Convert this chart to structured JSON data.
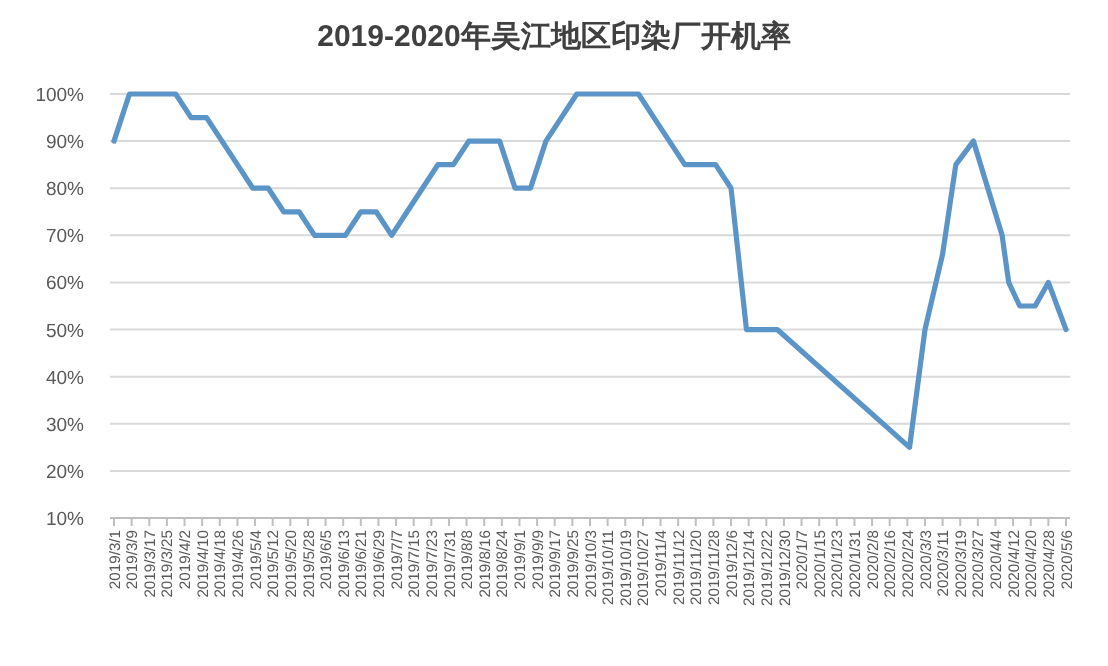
{
  "chart_data": {
    "type": "line",
    "title": "2019-2020年吴江地区印染厂开机率",
    "x": [
      "2019-03-01",
      "2019-03-08",
      "2019-03-15",
      "2019-03-22",
      "2019-03-29",
      "2019-04-05",
      "2019-04-12",
      "2019-04-19",
      "2019-04-26",
      "2019-05-03",
      "2019-05-10",
      "2019-05-17",
      "2019-05-24",
      "2019-05-31",
      "2019-06-07",
      "2019-06-14",
      "2019-06-21",
      "2019-06-28",
      "2019-07-05",
      "2019-07-12",
      "2019-07-19",
      "2019-07-26",
      "2019-08-02",
      "2019-08-09",
      "2019-08-16",
      "2019-08-23",
      "2019-08-30",
      "2019-09-06",
      "2019-09-13",
      "2019-09-20",
      "2019-09-27",
      "2019-10-04",
      "2019-10-11",
      "2019-10-18",
      "2019-10-25",
      "2019-11-01",
      "2019-11-08",
      "2019-11-15",
      "2019-11-22",
      "2019-11-29",
      "2019-12-06",
      "2019-12-13",
      "2019-12-20",
      "2019-12-27",
      "2020-02-25",
      "2020-03-03",
      "2020-03-11",
      "2020-03-17",
      "2020-03-25",
      "2020-04-07",
      "2020-04-10",
      "2020-04-15",
      "2020-04-22",
      "2020-04-28",
      "2020-05-06"
    ],
    "series": [
      {
        "color": "#5b95c8",
        "values": [
          90,
          100,
          100,
          100,
          100,
          95,
          95,
          90,
          85,
          80,
          80,
          75,
          75,
          70,
          70,
          70,
          75,
          75,
          70,
          75,
          80,
          85,
          85,
          90,
          90,
          90,
          80,
          80,
          90,
          95,
          100,
          100,
          100,
          100,
          100,
          95,
          90,
          85,
          85,
          85,
          80,
          50,
          50,
          50,
          25,
          50,
          66,
          85,
          90,
          70,
          60,
          55,
          55,
          60,
          50
        ]
      }
    ],
    "xlim": [
      "2019-03-01",
      "2020-05-06"
    ],
    "xticks": [
      {
        "value": "2019-03-01",
        "label": "2019/3/1"
      },
      {
        "value": "2019-03-09",
        "label": "2019/3/9"
      },
      {
        "value": "2019-03-17",
        "label": "2019/3/17"
      },
      {
        "value": "2019-03-25",
        "label": "2019/3/25"
      },
      {
        "value": "2019-04-02",
        "label": "2019/4/2"
      },
      {
        "value": "2019-04-10",
        "label": "2019/4/10"
      },
      {
        "value": "2019-04-18",
        "label": "2019/4/18"
      },
      {
        "value": "2019-04-26",
        "label": "2019/4/26"
      },
      {
        "value": "2019-05-04",
        "label": "2019/5/4"
      },
      {
        "value": "2019-05-12",
        "label": "2019/5/12"
      },
      {
        "value": "2019-05-20",
        "label": "2019/5/20"
      },
      {
        "value": "2019-05-28",
        "label": "2019/5/28"
      },
      {
        "value": "2019-06-05",
        "label": "2019/6/5"
      },
      {
        "value": "2019-06-13",
        "label": "2019/6/13"
      },
      {
        "value": "2019-06-21",
        "label": "2019/6/21"
      },
      {
        "value": "2019-06-29",
        "label": "2019/6/29"
      },
      {
        "value": "2019-07-07",
        "label": "2019/7/7"
      },
      {
        "value": "2019-07-15",
        "label": "2019/7/15"
      },
      {
        "value": "2019-07-23",
        "label": "2019/7/23"
      },
      {
        "value": "2019-07-31",
        "label": "2019/7/31"
      },
      {
        "value": "2019-08-08",
        "label": "2019/8/8"
      },
      {
        "value": "2019-08-16",
        "label": "2019/8/16"
      },
      {
        "value": "2019-08-24",
        "label": "2019/8/24"
      },
      {
        "value": "2019-09-01",
        "label": "2019/9/1"
      },
      {
        "value": "2019-09-09",
        "label": "2019/9/9"
      },
      {
        "value": "2019-09-17",
        "label": "2019/9/17"
      },
      {
        "value": "2019-09-25",
        "label": "2019/9/25"
      },
      {
        "value": "2019-10-03",
        "label": "2019/10/3"
      },
      {
        "value": "2019-10-11",
        "label": "2019/10/11"
      },
      {
        "value": "2019-10-19",
        "label": "2019/10/19"
      },
      {
        "value": "2019-10-27",
        "label": "2019/10/27"
      },
      {
        "value": "2019-11-04",
        "label": "2019/11/4"
      },
      {
        "value": "2019-11-12",
        "label": "2019/11/12"
      },
      {
        "value": "2019-11-20",
        "label": "2019/11/20"
      },
      {
        "value": "2019-11-28",
        "label": "2019/11/28"
      },
      {
        "value": "2019-12-06",
        "label": "2019/12/6"
      },
      {
        "value": "2019-12-14",
        "label": "2019/12/14"
      },
      {
        "value": "2019-12-22",
        "label": "2019/12/22"
      },
      {
        "value": "2019-12-30",
        "label": "2019/12/30"
      },
      {
        "value": "2020-01-07",
        "label": "2020/1/7"
      },
      {
        "value": "2020-01-15",
        "label": "2020/1/15"
      },
      {
        "value": "2020-01-23",
        "label": "2020/1/23"
      },
      {
        "value": "2020-01-31",
        "label": "2020/1/31"
      },
      {
        "value": "2020-02-08",
        "label": "2020/2/8"
      },
      {
        "value": "2020-02-16",
        "label": "2020/2/16"
      },
      {
        "value": "2020-02-24",
        "label": "2020/2/24"
      },
      {
        "value": "2020-03-03",
        "label": "2020/3/3"
      },
      {
        "value": "2020-03-11",
        "label": "2020/3/11"
      },
      {
        "value": "2020-03-19",
        "label": "2020/3/19"
      },
      {
        "value": "2020-03-27",
        "label": "2020/3/27"
      },
      {
        "value": "2020-04-04",
        "label": "2020/4/4"
      },
      {
        "value": "2020-04-12",
        "label": "2020/4/12"
      },
      {
        "value": "2020-04-20",
        "label": "2020/4/20"
      },
      {
        "value": "2020-04-28",
        "label": "2020/4/28"
      },
      {
        "value": "2020-05-06",
        "label": "2020/5/6"
      }
    ],
    "ylim": [
      10,
      100
    ],
    "yticks": [
      {
        "value": 10,
        "label": "10%"
      },
      {
        "value": 20,
        "label": "20%"
      },
      {
        "value": 30,
        "label": "30%"
      },
      {
        "value": 40,
        "label": "40%"
      },
      {
        "value": 50,
        "label": "50%"
      },
      {
        "value": 60,
        "label": "60%"
      },
      {
        "value": 70,
        "label": "70%"
      },
      {
        "value": 80,
        "label": "80%"
      },
      {
        "value": 90,
        "label": "90%"
      },
      {
        "value": 100,
        "label": "100%"
      }
    ],
    "grid": "y",
    "line_style": "solid",
    "marker": "none"
  }
}
